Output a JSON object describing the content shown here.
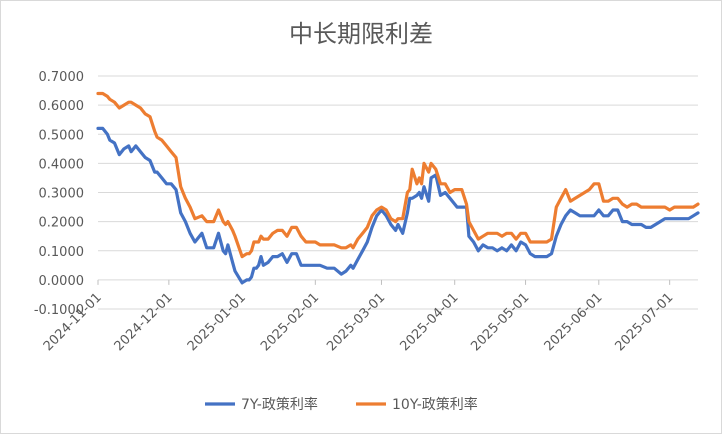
{
  "chart_data": {
    "type": "line",
    "title": "中长期限利差",
    "ylim": [
      -0.1,
      0.7
    ],
    "yticks": [
      "0.7000",
      "0.6000",
      "0.5000",
      "0.4000",
      "0.3000",
      "0.2000",
      "0.1000",
      "0.0000",
      "-0.1000"
    ],
    "xticks": [
      "2024-11-01",
      "2024-12-01",
      "2025-01-01",
      "2025-02-01",
      "2025-03-01",
      "2025-04-01",
      "2025-05-01",
      "2025-06-01",
      "2025-07-01"
    ],
    "x_range": [
      "2024-11-01",
      "2025-07-13"
    ],
    "grid": "horizontal",
    "legend_position": "bottom",
    "series": [
      {
        "name": "7Y-政策利率",
        "color": "#4472C4",
        "x": [
          "2024-11-01",
          "2024-11-03",
          "2024-11-05",
          "2024-11-06",
          "2024-11-08",
          "2024-11-10",
          "2024-11-12",
          "2024-11-14",
          "2024-11-15",
          "2024-11-17",
          "2024-11-19",
          "2024-11-21",
          "2024-11-23",
          "2024-11-25",
          "2024-11-26",
          "2024-11-28",
          "2024-11-30",
          "2024-12-02",
          "2024-12-04",
          "2024-12-06",
          "2024-12-08",
          "2024-12-10",
          "2024-12-12",
          "2024-12-15",
          "2024-12-17",
          "2024-12-20",
          "2024-12-22",
          "2024-12-24",
          "2024-12-25",
          "2024-12-26",
          "2024-12-28",
          "2024-12-29",
          "2025-01-01",
          "2025-01-03",
          "2025-01-04",
          "2025-01-05",
          "2025-01-06",
          "2025-01-07",
          "2025-01-08",
          "2025-01-09",
          "2025-01-10",
          "2025-01-12",
          "2025-01-14",
          "2025-01-16",
          "2025-01-18",
          "2025-01-20",
          "2025-01-22",
          "2025-01-24",
          "2025-01-26",
          "2025-01-28",
          "2025-01-30",
          "2025-02-01",
          "2025-02-03",
          "2025-02-06",
          "2025-02-09",
          "2025-02-12",
          "2025-02-14",
          "2025-02-16",
          "2025-02-17",
          "2025-02-19",
          "2025-02-21",
          "2025-02-23",
          "2025-02-25",
          "2025-02-27",
          "2025-03-01",
          "2025-03-03",
          "2025-03-05",
          "2025-03-07",
          "2025-03-08",
          "2025-03-10",
          "2025-03-12",
          "2025-03-13",
          "2025-03-14",
          "2025-03-16",
          "2025-03-17",
          "2025-03-18",
          "2025-03-19",
          "2025-03-21",
          "2025-03-22",
          "2025-03-24",
          "2025-03-26",
          "2025-03-28",
          "2025-03-30",
          "2025-04-01",
          "2025-04-02",
          "2025-04-04",
          "2025-04-06",
          "2025-04-07",
          "2025-04-09",
          "2025-04-11",
          "2025-04-13",
          "2025-04-15",
          "2025-04-17",
          "2025-04-19",
          "2025-04-21",
          "2025-04-23",
          "2025-04-25",
          "2025-04-27",
          "2025-04-29",
          "2025-05-01",
          "2025-05-03",
          "2025-05-05",
          "2025-05-07",
          "2025-05-09",
          "2025-05-10",
          "2025-05-12",
          "2025-05-14",
          "2025-05-16",
          "2025-05-18",
          "2025-05-20",
          "2025-05-22",
          "2025-05-24",
          "2025-05-26",
          "2025-05-28",
          "2025-05-30",
          "2025-06-01",
          "2025-06-03",
          "2025-06-05",
          "2025-06-07",
          "2025-06-09",
          "2025-06-11",
          "2025-06-13",
          "2025-06-15",
          "2025-06-17",
          "2025-06-19",
          "2025-06-21",
          "2025-06-23",
          "2025-06-25",
          "2025-06-27",
          "2025-06-29",
          "2025-07-01",
          "2025-07-03",
          "2025-07-05",
          "2025-07-07",
          "2025-07-09",
          "2025-07-11",
          "2025-07-13"
        ],
        "values": [
          0.52,
          0.52,
          0.5,
          0.48,
          0.47,
          0.43,
          0.45,
          0.46,
          0.44,
          0.46,
          0.44,
          0.42,
          0.41,
          0.37,
          0.37,
          0.35,
          0.33,
          0.33,
          0.31,
          0.23,
          0.2,
          0.16,
          0.13,
          0.16,
          0.11,
          0.11,
          0.16,
          0.1,
          0.09,
          0.12,
          0.06,
          0.03,
          -0.01,
          0.0,
          0.0,
          0.01,
          0.04,
          0.04,
          0.05,
          0.08,
          0.05,
          0.06,
          0.08,
          0.08,
          0.09,
          0.06,
          0.09,
          0.09,
          0.05,
          0.05,
          0.05,
          0.05,
          0.05,
          0.04,
          0.04,
          0.02,
          0.03,
          0.05,
          0.04,
          0.07,
          0.1,
          0.13,
          0.18,
          0.22,
          0.24,
          0.22,
          0.19,
          0.17,
          0.19,
          0.16,
          0.23,
          0.28,
          0.28,
          0.29,
          0.3,
          0.28,
          0.32,
          0.27,
          0.35,
          0.36,
          0.29,
          0.3,
          0.28,
          0.26,
          0.25,
          0.25,
          0.25,
          0.15,
          0.13,
          0.1,
          0.12,
          0.11,
          0.11,
          0.1,
          0.11,
          0.1,
          0.12,
          0.1,
          0.13,
          0.12,
          0.09,
          0.08,
          0.08,
          0.08,
          0.08,
          0.09,
          0.15,
          0.19,
          0.22,
          0.24,
          0.23,
          0.22,
          0.22,
          0.22,
          0.22,
          0.24,
          0.22,
          0.22,
          0.24,
          0.24,
          0.2,
          0.2,
          0.19,
          0.19,
          0.19,
          0.18,
          0.18,
          0.19,
          0.2,
          0.21,
          0.21,
          0.21,
          0.21,
          0.21,
          0.21,
          0.22,
          0.23
        ]
      },
      {
        "name": "10Y-政策利率",
        "color": "#ED7D31",
        "x": [
          "2024-11-01",
          "2024-11-03",
          "2024-11-05",
          "2024-11-06",
          "2024-11-08",
          "2024-11-10",
          "2024-11-12",
          "2024-11-14",
          "2024-11-15",
          "2024-11-17",
          "2024-11-19",
          "2024-11-21",
          "2024-11-23",
          "2024-11-25",
          "2024-11-26",
          "2024-11-28",
          "2024-11-30",
          "2024-12-02",
          "2024-12-04",
          "2024-12-06",
          "2024-12-08",
          "2024-12-10",
          "2024-12-12",
          "2024-12-15",
          "2024-12-17",
          "2024-12-20",
          "2024-12-22",
          "2024-12-24",
          "2024-12-25",
          "2024-12-26",
          "2024-12-28",
          "2024-12-29",
          "2025-01-01",
          "2025-01-03",
          "2025-01-04",
          "2025-01-05",
          "2025-01-06",
          "2025-01-07",
          "2025-01-08",
          "2025-01-09",
          "2025-01-10",
          "2025-01-12",
          "2025-01-14",
          "2025-01-16",
          "2025-01-18",
          "2025-01-20",
          "2025-01-22",
          "2025-01-24",
          "2025-01-26",
          "2025-01-28",
          "2025-01-30",
          "2025-02-01",
          "2025-02-03",
          "2025-02-06",
          "2025-02-09",
          "2025-02-12",
          "2025-02-14",
          "2025-02-16",
          "2025-02-17",
          "2025-02-19",
          "2025-02-21",
          "2025-02-23",
          "2025-02-25",
          "2025-02-27",
          "2025-03-01",
          "2025-03-03",
          "2025-03-05",
          "2025-03-07",
          "2025-03-08",
          "2025-03-10",
          "2025-03-12",
          "2025-03-13",
          "2025-03-14",
          "2025-03-16",
          "2025-03-17",
          "2025-03-18",
          "2025-03-19",
          "2025-03-21",
          "2025-03-22",
          "2025-03-24",
          "2025-03-26",
          "2025-03-28",
          "2025-03-30",
          "2025-04-01",
          "2025-04-02",
          "2025-04-04",
          "2025-04-06",
          "2025-04-07",
          "2025-04-09",
          "2025-04-11",
          "2025-04-13",
          "2025-04-15",
          "2025-04-17",
          "2025-04-19",
          "2025-04-21",
          "2025-04-23",
          "2025-04-25",
          "2025-04-27",
          "2025-04-29",
          "2025-05-01",
          "2025-05-03",
          "2025-05-05",
          "2025-05-07",
          "2025-05-09",
          "2025-05-10",
          "2025-05-12",
          "2025-05-14",
          "2025-05-16",
          "2025-05-18",
          "2025-05-20",
          "2025-05-22",
          "2025-05-24",
          "2025-05-26",
          "2025-05-28",
          "2025-05-30",
          "2025-06-01",
          "2025-06-03",
          "2025-06-05",
          "2025-06-07",
          "2025-06-09",
          "2025-06-11",
          "2025-06-13",
          "2025-06-15",
          "2025-06-17",
          "2025-06-19",
          "2025-06-21",
          "2025-06-23",
          "2025-06-25",
          "2025-06-27",
          "2025-06-29",
          "2025-07-01",
          "2025-07-03",
          "2025-07-05",
          "2025-07-07",
          "2025-07-09",
          "2025-07-11",
          "2025-07-13"
        ],
        "values": [
          0.64,
          0.64,
          0.63,
          0.62,
          0.61,
          0.59,
          0.6,
          0.61,
          0.61,
          0.6,
          0.59,
          0.57,
          0.56,
          0.51,
          0.49,
          0.48,
          0.46,
          0.44,
          0.42,
          0.32,
          0.28,
          0.25,
          0.21,
          0.22,
          0.2,
          0.2,
          0.24,
          0.2,
          0.19,
          0.2,
          0.17,
          0.15,
          0.08,
          0.09,
          0.09,
          0.1,
          0.13,
          0.13,
          0.13,
          0.15,
          0.14,
          0.14,
          0.16,
          0.17,
          0.17,
          0.15,
          0.18,
          0.18,
          0.15,
          0.13,
          0.13,
          0.13,
          0.12,
          0.12,
          0.12,
          0.11,
          0.11,
          0.12,
          0.11,
          0.14,
          0.16,
          0.18,
          0.22,
          0.24,
          0.25,
          0.24,
          0.21,
          0.2,
          0.21,
          0.21,
          0.3,
          0.31,
          0.38,
          0.33,
          0.35,
          0.33,
          0.4,
          0.37,
          0.4,
          0.38,
          0.33,
          0.33,
          0.3,
          0.31,
          0.31,
          0.31,
          0.26,
          0.2,
          0.17,
          0.14,
          0.15,
          0.16,
          0.16,
          0.16,
          0.15,
          0.16,
          0.16,
          0.14,
          0.16,
          0.16,
          0.13,
          0.13,
          0.13,
          0.13,
          0.13,
          0.14,
          0.25,
          0.28,
          0.31,
          0.27,
          0.28,
          0.29,
          0.3,
          0.31,
          0.33,
          0.33,
          0.27,
          0.27,
          0.28,
          0.28,
          0.26,
          0.25,
          0.26,
          0.26,
          0.25,
          0.25,
          0.25,
          0.25,
          0.25,
          0.25,
          0.24,
          0.25,
          0.25,
          0.25,
          0.25,
          0.25,
          0.26
        ]
      }
    ]
  }
}
